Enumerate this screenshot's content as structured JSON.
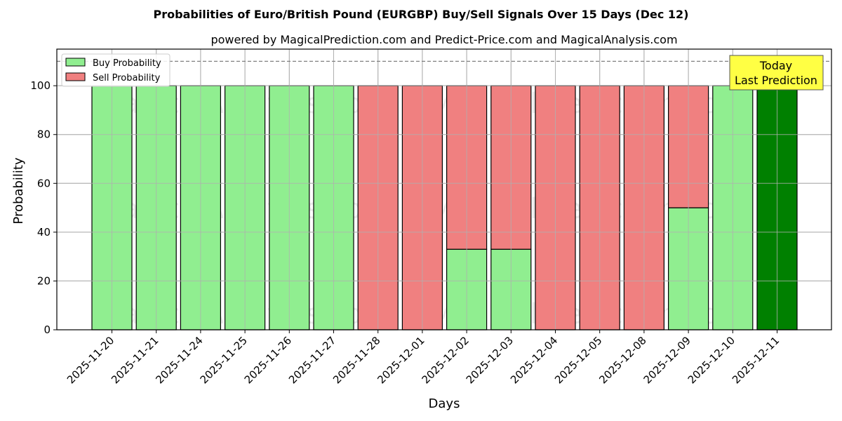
{
  "colors": {
    "buy": "#90ee90",
    "sell": "#f08080",
    "today_bar": "#008000",
    "today_box": "#ffff44",
    "grid": "#b0b0b0",
    "dashed_line": "#808080"
  },
  "watermark": {
    "left": "MagicalAnalysis.com",
    "right": "MagicalPrediction.com"
  },
  "annotation": {
    "line1": "Today",
    "line2": "Last Prediction"
  },
  "chart_data": {
    "type": "bar",
    "stacked": true,
    "title": "Probabilities of Euro/British Pound (EURGBP) Buy/Sell Signals Over 15 Days (Dec 12)",
    "subtitle": "powered by MagicalPrediction.com and Predict-Price.com and MagicalAnalysis.com",
    "xlabel": "Days",
    "ylabel": "Probability",
    "ylim": [
      0,
      115
    ],
    "yticks": [
      0,
      20,
      40,
      60,
      80,
      100
    ],
    "reference_line": 110,
    "grid": true,
    "legend_position": "upper-left",
    "categories": [
      "2025-11-20",
      "2025-11-21",
      "2025-11-24",
      "2025-11-25",
      "2025-11-26",
      "2025-11-27",
      "2025-11-28",
      "2025-12-01",
      "2025-12-02",
      "2025-12-03",
      "2025-12-04",
      "2025-12-05",
      "2025-12-08",
      "2025-12-09",
      "2025-12-10",
      "2025-12-11"
    ],
    "series": [
      {
        "name": "Buy Probability",
        "values": [
          100,
          100,
          100,
          100,
          100,
          100,
          0,
          0,
          33,
          33,
          0,
          0,
          0,
          50,
          100,
          100
        ]
      },
      {
        "name": "Sell Probability",
        "values": [
          0,
          0,
          0,
          0,
          0,
          0,
          100,
          100,
          67,
          67,
          100,
          100,
          100,
          50,
          0,
          0
        ]
      }
    ],
    "highlight_index": 15
  }
}
